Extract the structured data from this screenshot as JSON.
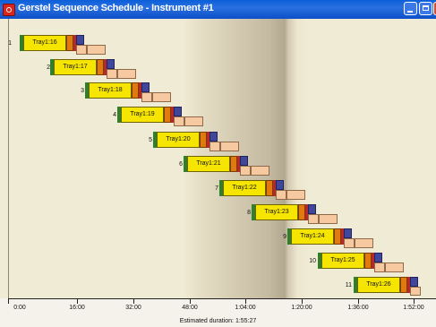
{
  "window": {
    "title": "Gerstel Sequence Schedule - Instrument #1",
    "controls": [
      "minimize",
      "maximize",
      "close"
    ]
  },
  "colors": {
    "titlebar": "#0b5fd8",
    "background": "#f0ebd4",
    "prep_segment": "#f6e500",
    "start_marker": "#2f7f2c",
    "transfer_segment": "#e07a10",
    "inject_segment": "#b8282a",
    "run_segment": "#40469a",
    "post_segment": "#f6c9a0"
  },
  "sequence": [
    {
      "row": "1",
      "label": "Tray1:16"
    },
    {
      "row": "2",
      "label": "Tray1:17"
    },
    {
      "row": "3",
      "label": "Tray1:18"
    },
    {
      "row": "4",
      "label": "Tray1:19"
    },
    {
      "row": "5",
      "label": "Tray1:20"
    },
    {
      "row": "6",
      "label": "Tray1:21"
    },
    {
      "row": "7",
      "label": "Tray1:22"
    },
    {
      "row": "8",
      "label": "Tray1:23"
    },
    {
      "row": "9",
      "label": "Tray1:24"
    },
    {
      "row": "10",
      "label": "Tray1:25"
    },
    {
      "row": "11",
      "label": "Tray1:26"
    }
  ],
  "time_axis": {
    "ticks": [
      "0:00",
      "16:00",
      "32:00",
      "48:00",
      "1:04:00",
      "1:20:00",
      "1:36:00",
      "1:52:00"
    ]
  },
  "status": {
    "estimated_duration": "Estimated duration: 1:55:27"
  }
}
